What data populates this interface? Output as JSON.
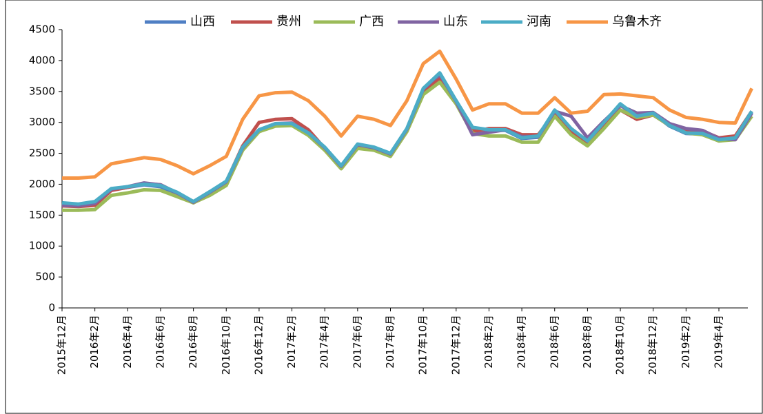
{
  "chart_data": {
    "type": "line",
    "categories": [
      "2015年12月",
      null,
      "2016年2月",
      null,
      "2016年4月",
      null,
      "2016年6月",
      null,
      "2016年8月",
      null,
      "2016年10月",
      null,
      "2016年12月",
      null,
      "2017年2月",
      null,
      "2017年4月",
      null,
      "2017年6月",
      null,
      "2017年8月",
      null,
      "2017年10月",
      null,
      "2017年12月",
      null,
      "2018年2月",
      null,
      "2018年4月",
      null,
      "2018年6月",
      null,
      "2018年8月",
      null,
      "2018年10月",
      null,
      "2018年12月",
      null,
      "2019年2月",
      null,
      "2019年4月",
      null,
      null
    ],
    "series": [
      {
        "name": "山西",
        "color": "#4f7fc4",
        "values": [
          1680,
          1660,
          1700,
          1910,
          1950,
          1990,
          1960,
          1840,
          1700,
          1860,
          2030,
          2580,
          2860,
          2960,
          2960,
          2810,
          2580,
          2290,
          2630,
          2580,
          2480,
          2880,
          3520,
          3760,
          3320,
          2900,
          2870,
          2870,
          2740,
          2760,
          3180,
          2880,
          2690,
          2990,
          3280,
          3090,
          3140,
          2940,
          2820,
          2810,
          2700,
          2740,
          3160
        ]
      },
      {
        "name": "贵州",
        "color": "#c0504d",
        "values": [
          1650,
          1640,
          1660,
          1900,
          1950,
          2010,
          1990,
          1860,
          1700,
          1870,
          2040,
          2620,
          3000,
          3050,
          3060,
          2880,
          2580,
          2300,
          2620,
          2580,
          2480,
          2880,
          3500,
          3700,
          3350,
          2850,
          2900,
          2900,
          2800,
          2800,
          3150,
          2850,
          2650,
          2950,
          3200,
          3050,
          3120,
          2950,
          2850,
          2860,
          2750,
          2780,
          3180
        ]
      },
      {
        "name": "广西",
        "color": "#9bbb59",
        "values": [
          1580,
          1580,
          1590,
          1820,
          1860,
          1910,
          1900,
          1800,
          1700,
          1820,
          1980,
          2550,
          2850,
          2940,
          2950,
          2790,
          2550,
          2250,
          2580,
          2550,
          2450,
          2850,
          3450,
          3650,
          3300,
          2820,
          2780,
          2780,
          2680,
          2680,
          3100,
          2800,
          2620,
          2900,
          3200,
          3080,
          3120,
          2950,
          2830,
          2800,
          2700,
          2720,
          3100
        ]
      },
      {
        "name": "山东",
        "color": "#8064a2",
        "values": [
          1660,
          1650,
          1690,
          1920,
          1960,
          2020,
          1990,
          1860,
          1710,
          1870,
          2040,
          2590,
          2880,
          2980,
          2990,
          2830,
          2590,
          2290,
          2640,
          2590,
          2490,
          2890,
          3540,
          3780,
          3340,
          2800,
          2840,
          2880,
          2770,
          2770,
          3180,
          3100,
          2750,
          3020,
          3270,
          3150,
          3160,
          2980,
          2900,
          2870,
          2740,
          2720,
          3150
        ]
      },
      {
        "name": "河南",
        "color": "#4bacc6",
        "values": [
          1700,
          1680,
          1720,
          1930,
          1960,
          2000,
          1980,
          1870,
          1720,
          1880,
          2050,
          2600,
          2880,
          2980,
          2980,
          2830,
          2600,
          2300,
          2650,
          2600,
          2500,
          2900,
          3550,
          3800,
          3350,
          2920,
          2880,
          2880,
          2750,
          2780,
          3200,
          2900,
          2700,
          3000,
          3300,
          3100,
          3150,
          2950,
          2830,
          2820,
          2720,
          2750,
          3180
        ]
      },
      {
        "name": "乌鲁木齐",
        "color": "#f79646",
        "values": [
          2100,
          2100,
          2120,
          2330,
          2380,
          2430,
          2400,
          2300,
          2170,
          2300,
          2450,
          3050,
          3430,
          3480,
          3490,
          3350,
          3100,
          2780,
          3100,
          3050,
          2950,
          3350,
          3950,
          4150,
          3700,
          3200,
          3300,
          3300,
          3150,
          3150,
          3400,
          3150,
          3180,
          3450,
          3460,
          3430,
          3400,
          3200,
          3080,
          3050,
          3000,
          2990,
          3550
        ]
      }
    ],
    "ylim": [
      0,
      4500
    ],
    "yticks": [
      0,
      500,
      1000,
      1500,
      2000,
      2500,
      3000,
      3500,
      4000,
      4500
    ]
  }
}
